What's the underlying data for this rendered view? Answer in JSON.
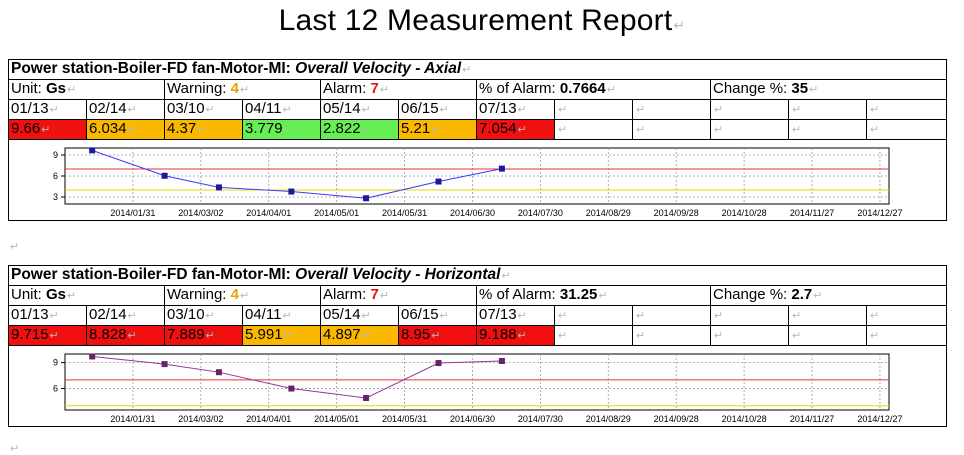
{
  "title": "Last 12 Measurement Report",
  "reports": [
    {
      "header_prefix": "Power station-Boiler-FD fan-Motor-MI: ",
      "header_measure": "Overall Velocity - Axial",
      "unit_label": "Unit: ",
      "unit_value": "Gs",
      "warning_label": "Warning: ",
      "warning_value": "4",
      "alarm_label": "Alarm: ",
      "alarm_value": "7",
      "pct_label": "% of Alarm: ",
      "pct_value": "0.7664",
      "change_label": "Change %: ",
      "change_value": "35",
      "dates": [
        "01/13",
        "02/14",
        "03/10",
        "04/11",
        "05/14",
        "06/15",
        "07/13"
      ],
      "values": [
        "9.66",
        "6.034",
        "4.37",
        "3.779",
        "2.822",
        "5.21",
        "7.054"
      ],
      "value_status": [
        "red",
        "orange",
        "orange",
        "green",
        "green",
        "orange",
        "red"
      ]
    },
    {
      "header_prefix": "Power station-Boiler-FD fan-Motor-MI: ",
      "header_measure": "Overall Velocity - Horizontal",
      "unit_label": "Unit: ",
      "unit_value": "Gs",
      "warning_label": "Warning: ",
      "warning_value": "4",
      "alarm_label": "Alarm: ",
      "alarm_value": "7",
      "pct_label": "% of Alarm: ",
      "pct_value": "31.25",
      "change_label": "Change %: ",
      "change_value": "2.7",
      "dates": [
        "01/13",
        "02/14",
        "03/10",
        "04/11",
        "05/14",
        "06/15",
        "07/13"
      ],
      "values": [
        "9.715",
        "8.828",
        "7.889",
        "5.991",
        "4.897",
        "8.95",
        "9.188"
      ],
      "value_status": [
        "red",
        "red",
        "red",
        "orange",
        "orange",
        "red",
        "red"
      ]
    }
  ],
  "chart_data": [
    {
      "type": "line",
      "x": [
        "2014/01/13",
        "2014/02/14",
        "2014/03/10",
        "2014/04/11",
        "2014/05/14",
        "2014/06/15",
        "2014/07/13"
      ],
      "y": [
        9.66,
        6.034,
        4.37,
        3.779,
        2.822,
        5.21,
        7.054
      ],
      "series_color": "#3a3aff",
      "ylim": [
        2,
        10
      ],
      "yticks": [
        "9",
        "6",
        "3"
      ],
      "ytick_values": [
        9,
        6,
        3
      ],
      "xticks": [
        "2014/01/31",
        "2014/03/02",
        "2014/04/01",
        "2014/05/01",
        "2014/05/31",
        "2014/06/30",
        "2014/07/30",
        "2014/08/29",
        "2014/09/28",
        "2014/10/28",
        "2014/11/27",
        "2014/12/27"
      ],
      "xlim": [
        "2014/01/01",
        "2014/12/31"
      ],
      "warning_line": 4,
      "warning_color": "#e8d800",
      "alarm_line": 7,
      "alarm_color": "#ee3333",
      "grid": true
    },
    {
      "type": "line",
      "x": [
        "2014/01/13",
        "2014/02/14",
        "2014/03/10",
        "2014/04/11",
        "2014/05/14",
        "2014/06/15",
        "2014/07/13"
      ],
      "y": [
        9.715,
        8.828,
        7.889,
        5.991,
        4.897,
        8.95,
        9.188
      ],
      "series_color": "#993399",
      "ylim": [
        3.5,
        10
      ],
      "yticks": [
        "9",
        "6"
      ],
      "ytick_values": [
        9,
        6
      ],
      "xticks": [
        "2014/01/31",
        "2014/03/02",
        "2014/04/01",
        "2014/05/01",
        "2014/05/31",
        "2014/06/30",
        "2014/07/30",
        "2014/08/29",
        "2014/09/28",
        "2014/10/28",
        "2014/11/27",
        "2014/12/27"
      ],
      "xlim": [
        "2014/01/01",
        "2014/12/31"
      ],
      "warning_line": 4,
      "warning_color": "#e8d800",
      "alarm_line": 7,
      "alarm_color": "#ee3333",
      "grid": true
    }
  ]
}
